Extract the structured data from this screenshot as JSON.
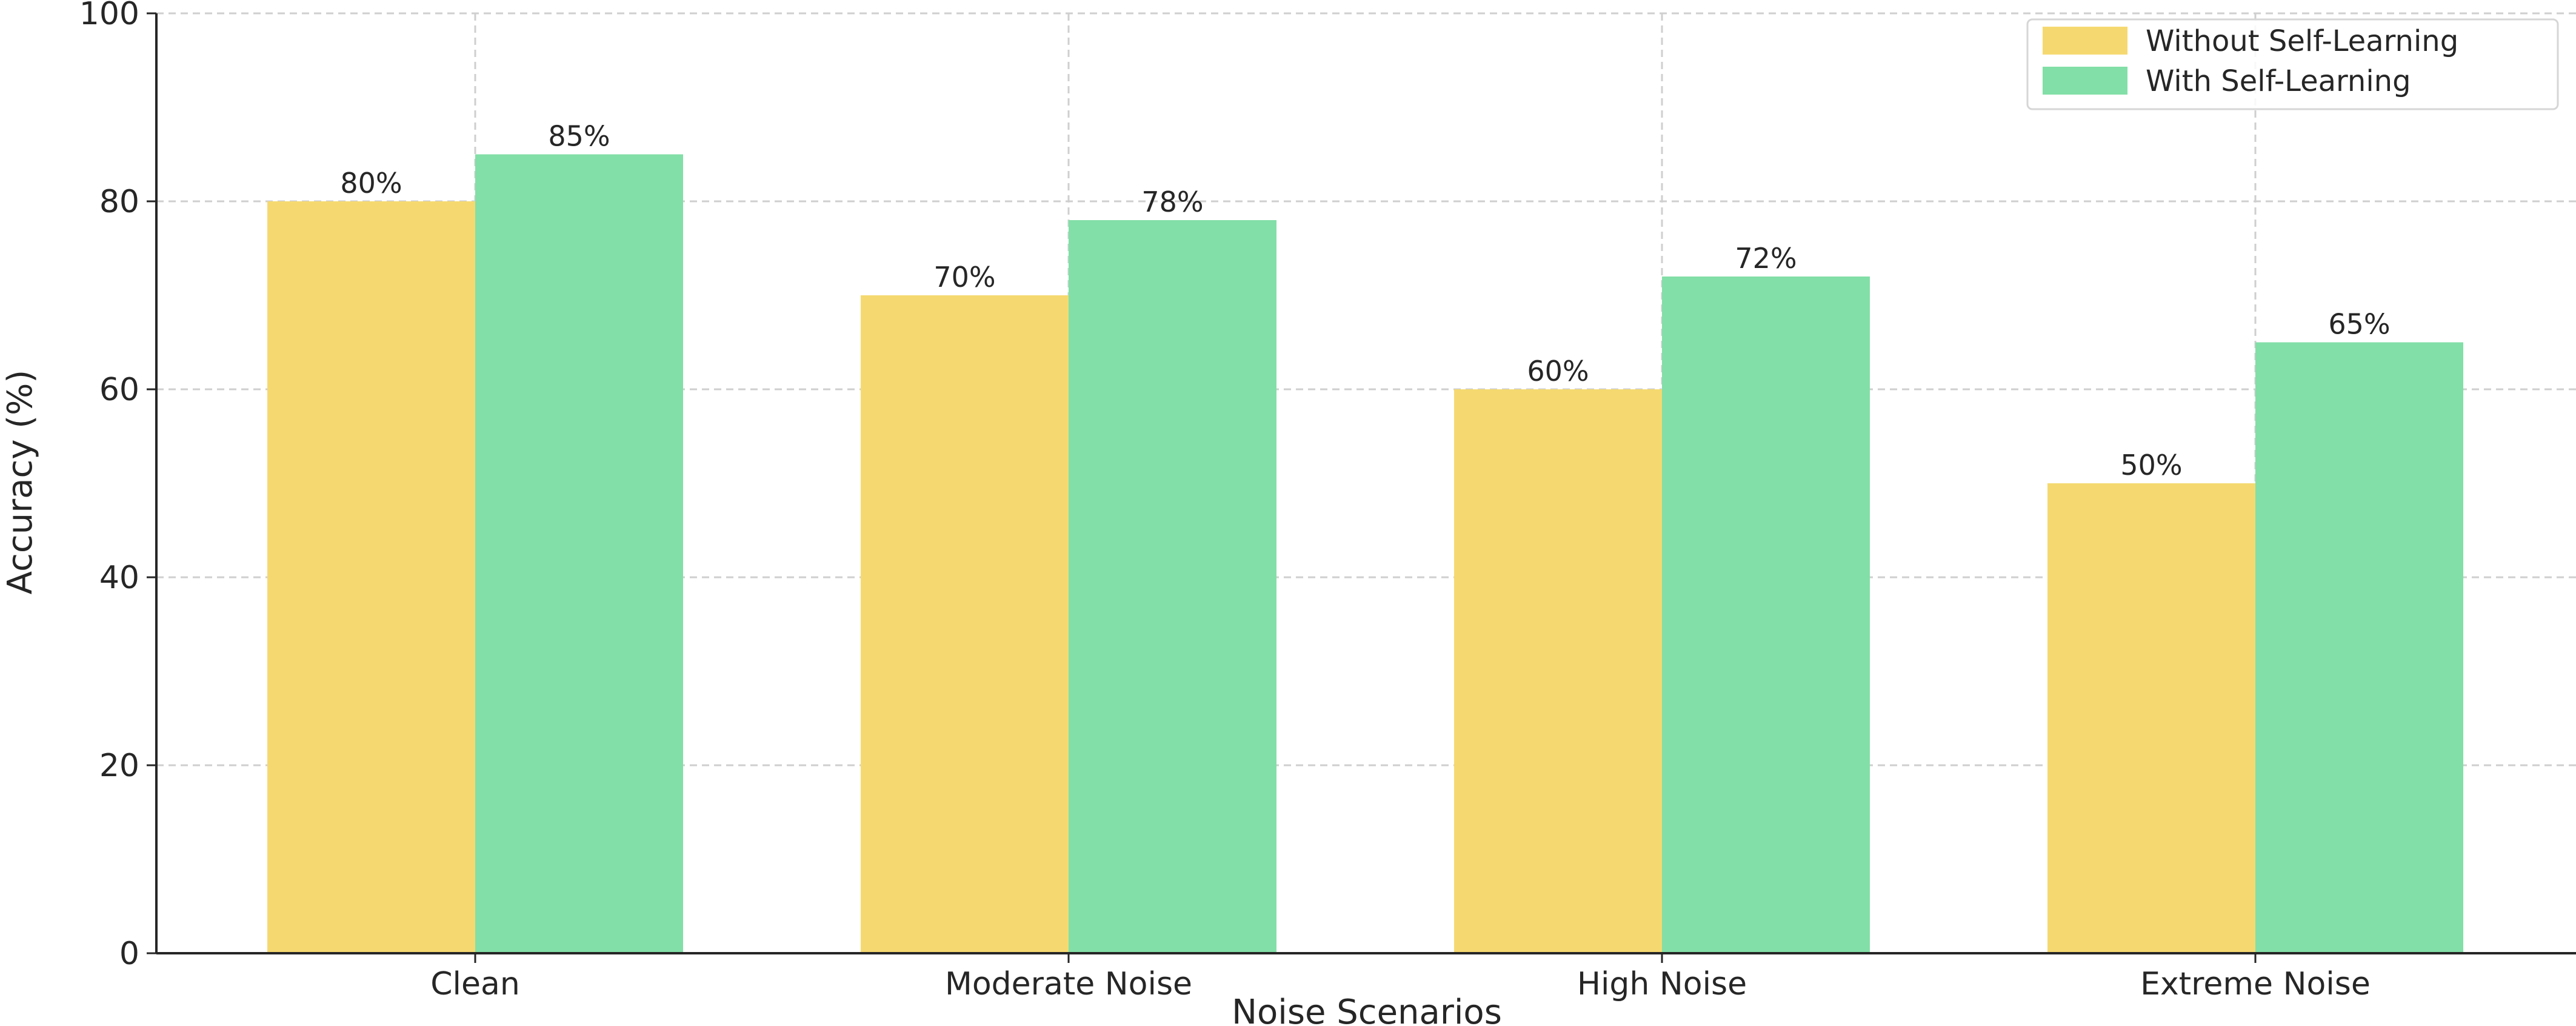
{
  "chart_data": {
    "type": "bar",
    "title": "",
    "xlabel": "Noise Scenarios",
    "ylabel": "Accuracy (%)",
    "ylim": [
      0,
      100
    ],
    "yticks": [
      0,
      20,
      40,
      60,
      80,
      100
    ],
    "grid": true,
    "legend_position": "top-right",
    "categories": [
      "Clean",
      "Moderate Noise",
      "High Noise",
      "Extreme Noise"
    ],
    "series": [
      {
        "name": "Without Self-Learning",
        "values": [
          80,
          70,
          60,
          50
        ],
        "labels": [
          "80%",
          "70%",
          "60%",
          "50%"
        ],
        "color": "#f5d970"
      },
      {
        "name": "With Self-Learning",
        "values": [
          85,
          78,
          72,
          65
        ],
        "labels": [
          "85%",
          "78%",
          "72%",
          "65%"
        ],
        "color": "#82dfa7"
      }
    ]
  }
}
